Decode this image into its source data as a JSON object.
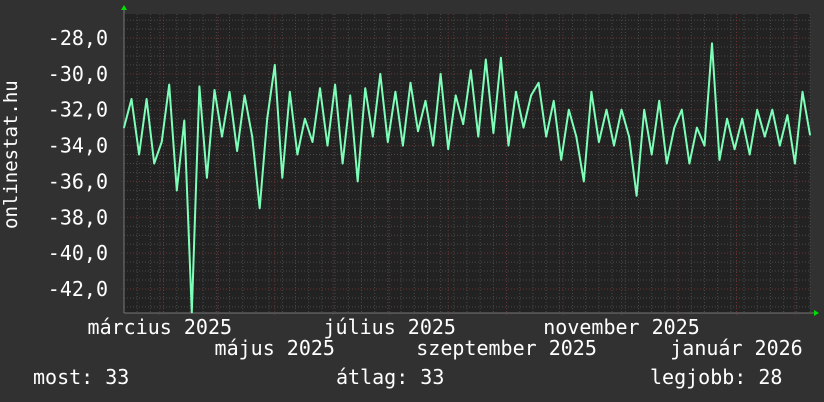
{
  "chart_data": {
    "type": "line",
    "ylabel": "onlinestat.hu",
    "ylim": [
      -43.34,
      -26.66
    ],
    "xlim": [
      "2025-02-10",
      "2026-02-09"
    ],
    "grid": true,
    "yticks": [
      -28,
      -30,
      -32,
      -34,
      -36,
      -38,
      -40,
      -42
    ],
    "ytick_labels": [
      "-28,0",
      "-30,0",
      "-32,0",
      "-34,0",
      "-36,0",
      "-38,0",
      "-40,0",
      "-42,0"
    ],
    "xtick_labels": [
      {
        "date": "2025-03-01",
        "label": "március 2025"
      },
      {
        "date": "2025-05-01",
        "label": "május 2025"
      },
      {
        "date": "2025-07-01",
        "label": "július 2025"
      },
      {
        "date": "2025-09-01",
        "label": "szeptember 2025"
      },
      {
        "date": "2025-11-01",
        "label": "november 2025"
      },
      {
        "date": "2026-01-01",
        "label": "január 2026"
      }
    ],
    "series": [
      {
        "color": "#7dffb9",
        "x": [
          "2025-02-10",
          "2025-02-14",
          "2025-02-18",
          "2025-02-22",
          "2025-02-26",
          "2025-03-02",
          "2025-03-06",
          "2025-03-10",
          "2025-03-14",
          "2025-03-18",
          "2025-03-22",
          "2025-03-26",
          "2025-03-30",
          "2025-04-03",
          "2025-04-07",
          "2025-04-11",
          "2025-04-15",
          "2025-04-19",
          "2025-04-23",
          "2025-04-27",
          "2025-05-01",
          "2025-05-05",
          "2025-05-09",
          "2025-05-13",
          "2025-05-17",
          "2025-05-21",
          "2025-05-25",
          "2025-05-29",
          "2025-06-02",
          "2025-06-06",
          "2025-06-10",
          "2025-06-14",
          "2025-06-18",
          "2025-06-22",
          "2025-06-26",
          "2025-06-30",
          "2025-07-04",
          "2025-07-08",
          "2025-07-12",
          "2025-07-16",
          "2025-07-20",
          "2025-07-24",
          "2025-07-28",
          "2025-08-01",
          "2025-08-05",
          "2025-08-09",
          "2025-08-13",
          "2025-08-17",
          "2025-08-21",
          "2025-08-25",
          "2025-08-29",
          "2025-09-02",
          "2025-09-06",
          "2025-09-10",
          "2025-09-14",
          "2025-09-18",
          "2025-09-22",
          "2025-09-26",
          "2025-09-30",
          "2025-10-04",
          "2025-10-08",
          "2025-10-12",
          "2025-10-16",
          "2025-10-20",
          "2025-10-24",
          "2025-10-28",
          "2025-11-01",
          "2025-11-05",
          "2025-11-09",
          "2025-11-13",
          "2025-11-17",
          "2025-11-21",
          "2025-11-25",
          "2025-11-29",
          "2025-12-03",
          "2025-12-07",
          "2025-12-11",
          "2025-12-15",
          "2025-12-19",
          "2025-12-23",
          "2025-12-27",
          "2025-12-31",
          "2026-01-04",
          "2026-01-08",
          "2026-01-12",
          "2026-01-16",
          "2026-01-20",
          "2026-01-24",
          "2026-01-28",
          "2026-02-01",
          "2026-02-05",
          "2026-02-09"
        ],
        "y": [
          -33.0,
          -31.4,
          -34.5,
          -31.4,
          -35.0,
          -33.8,
          -30.6,
          -36.5,
          -32.6,
          -43.3,
          -30.7,
          -35.8,
          -30.9,
          -33.5,
          -31.0,
          -34.3,
          -31.2,
          -33.5,
          -37.5,
          -32.5,
          -29.5,
          -35.8,
          -31.0,
          -34.5,
          -32.5,
          -33.8,
          -30.8,
          -34.0,
          -30.6,
          -35.0,
          -31.2,
          -36.0,
          -30.8,
          -33.5,
          -30.0,
          -33.8,
          -31.0,
          -34.0,
          -30.5,
          -33.2,
          -31.5,
          -34.0,
          -30.0,
          -34.2,
          -31.2,
          -32.8,
          -29.8,
          -33.5,
          -29.2,
          -33.3,
          -29.1,
          -34.0,
          -31.0,
          -33.0,
          -31.2,
          -30.5,
          -33.5,
          -31.5,
          -34.8,
          -32.0,
          -33.5,
          -36.0,
          -31.0,
          -33.8,
          -32.0,
          -34.0,
          -32.0,
          -33.5,
          -36.8,
          -32.0,
          -34.5,
          -31.5,
          -35.0,
          -33.0,
          -32.0,
          -35.0,
          -33.0,
          -34.0,
          -28.3,
          -34.8,
          -32.5,
          -34.2,
          -32.5,
          -34.5,
          -32.0,
          -33.5,
          -32.0,
          -34.0,
          -32.3,
          -35.0,
          -31.0,
          -33.4
        ]
      }
    ]
  },
  "stats": {
    "current": "most: 33",
    "average": "átlag: 33",
    "best": "legjobb: 28"
  }
}
